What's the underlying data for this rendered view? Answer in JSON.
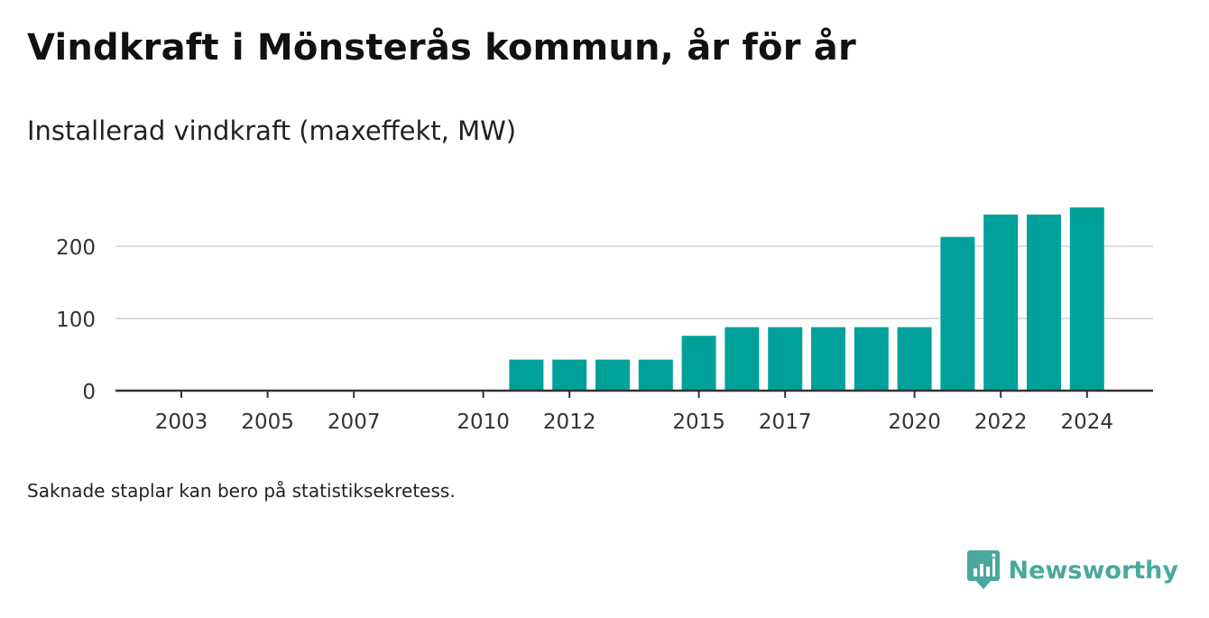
{
  "title": "Vindkraft i Mönsterås kommun, år för år",
  "subtitle": "Installerad vindkraft (maxeffekt, MW)",
  "note": "Saknade staplar kan bero på statistiksekretess.",
  "brand": {
    "name": "Newsworthy",
    "icon": "newsworthy-logo-icon",
    "color": "#4aa89f"
  },
  "colors": {
    "bar": "#00a19a",
    "grid": "#dddddd",
    "axis": "#333333",
    "tick_text": "#333333"
  },
  "chart_data": {
    "type": "bar",
    "title": "Vindkraft i Mönsterås kommun, år för år",
    "subtitle": "Installerad vindkraft (maxeffekt, MW)",
    "xlabel": "",
    "ylabel": "",
    "x": [
      2011,
      2012,
      2013,
      2014,
      2015,
      2016,
      2017,
      2018,
      2019,
      2020,
      2021,
      2022,
      2023,
      2024
    ],
    "values": [
      43,
      43,
      43,
      43,
      76,
      88,
      88,
      88,
      88,
      88,
      213,
      244,
      244,
      254
    ],
    "xlim": [
      2002,
      2025
    ],
    "ylim": [
      0,
      280
    ],
    "yticks": [
      0,
      100,
      200
    ],
    "xticks": [
      2003,
      2005,
      2007,
      2010,
      2012,
      2015,
      2017,
      2020,
      2022,
      2024
    ],
    "grid": true,
    "legend": "none"
  }
}
